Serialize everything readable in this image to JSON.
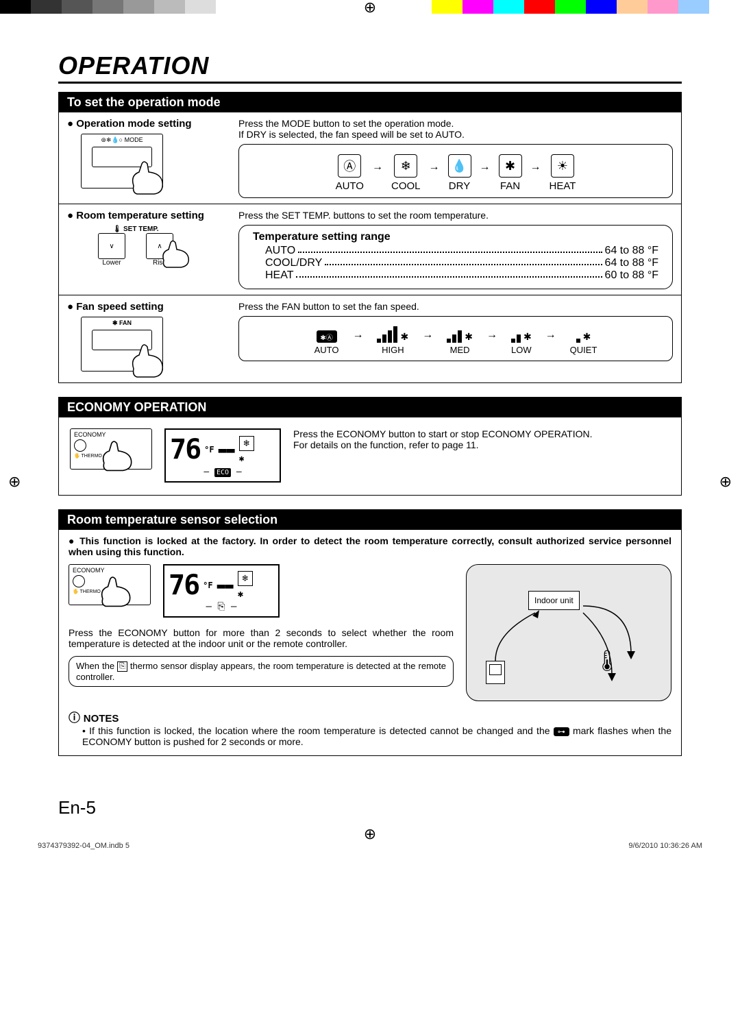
{
  "colorbar": [
    "#000000",
    "#333333",
    "#555555",
    "#777777",
    "#999999",
    "#bbbbbb",
    "#dddddd",
    "#ffffff",
    "#ffffff",
    "#ffffff",
    "#ffffff",
    "#ffffff",
    "#ffffff",
    "#ffffff",
    "#ffff00",
    "#ff00ff",
    "#00ffff",
    "#ff0000",
    "#00ff00",
    "#0000ff",
    "#ffcc99",
    "#ff99cc",
    "#99ccff",
    "#ffffff"
  ],
  "title": "OPERATION",
  "sec1": {
    "header": "To set the operation mode",
    "op_mode": {
      "label": "Operation mode setting",
      "remote_label": "⊛❄💧○ MODE",
      "desc1": "Press the MODE button to set the operation mode.",
      "desc2": "If DRY is selected, the fan speed will be set to AUTO.",
      "modes": [
        {
          "icon": "Ⓐ",
          "label": "AUTO"
        },
        {
          "icon": "❄",
          "label": "COOL"
        },
        {
          "icon": "💧",
          "label": "DRY"
        },
        {
          "icon": "✱",
          "label": "FAN"
        },
        {
          "icon": "☀",
          "label": "HEAT"
        }
      ]
    },
    "room_temp": {
      "label": "Room temperature setting",
      "desc": "Press the SET TEMP. buttons to set the room temperature.",
      "remote_label": "🌡 SET TEMP.",
      "lower": "Lower",
      "rise": "Rise",
      "range_hdr": "Temperature setting range",
      "rows": [
        {
          "lbl": "AUTO",
          "val": "64 to 88 °F"
        },
        {
          "lbl": "COOL/DRY",
          "val": "64 to 88 °F"
        },
        {
          "lbl": "HEAT",
          "val": "60 to 88 °F"
        }
      ]
    },
    "fan": {
      "label": "Fan speed setting",
      "remote_label": "✱ FAN",
      "desc": "Press the FAN button to set the fan speed.",
      "items": [
        {
          "label": "AUTO",
          "bars": [
            0
          ],
          "auto": true
        },
        {
          "label": "HIGH",
          "bars": [
            6,
            12,
            18,
            24
          ]
        },
        {
          "label": "MED",
          "bars": [
            6,
            12,
            18
          ]
        },
        {
          "label": "LOW",
          "bars": [
            6,
            12
          ]
        },
        {
          "label": "QUIET",
          "bars": [
            6
          ]
        }
      ]
    }
  },
  "sec2": {
    "header": "ECONOMY OPERATION",
    "remote_top": "ECONOMY",
    "remote_bot": "🖐 THERMO SEN",
    "lcd_temp": "76",
    "lcd_unit": "°F",
    "eco": "ECO",
    "text1": "Press the ECONOMY button to start or stop ECONOMY OPERATION.",
    "text2": "For details on the function, refer to page 11."
  },
  "sec3": {
    "header": "Room temperature sensor selection",
    "bold": "This function is locked at the factory. In order to detect the room temperature correctly, consult authorized service personnel when using this function.",
    "remote_top": "ECONOMY",
    "remote_bot": "🖐 THERMO SEN",
    "lcd_temp": "76",
    "lcd_unit": "°F",
    "indoor": "Indoor unit",
    "press_text": "Press the ECONOMY button for more than 2 seconds to select whether the room temperature is detected at the indoor unit or the remote controller.",
    "inner1": "When the ",
    "inner2": " thermo sensor display appears, the room temperature is detected at the remote controller.",
    "notes_hdr": "NOTES",
    "note_a": "If this function is locked, the location where the room temperature is detected cannot be changed and the ",
    "note_b": " mark flashes when the ECONOMY button is pushed for 2 seconds or more.",
    "key": "⊶"
  },
  "page_num": "En-5",
  "footer_left": "9374379392-04_OM.indb   5",
  "footer_right": "9/6/2010   10:36:26 AM"
}
